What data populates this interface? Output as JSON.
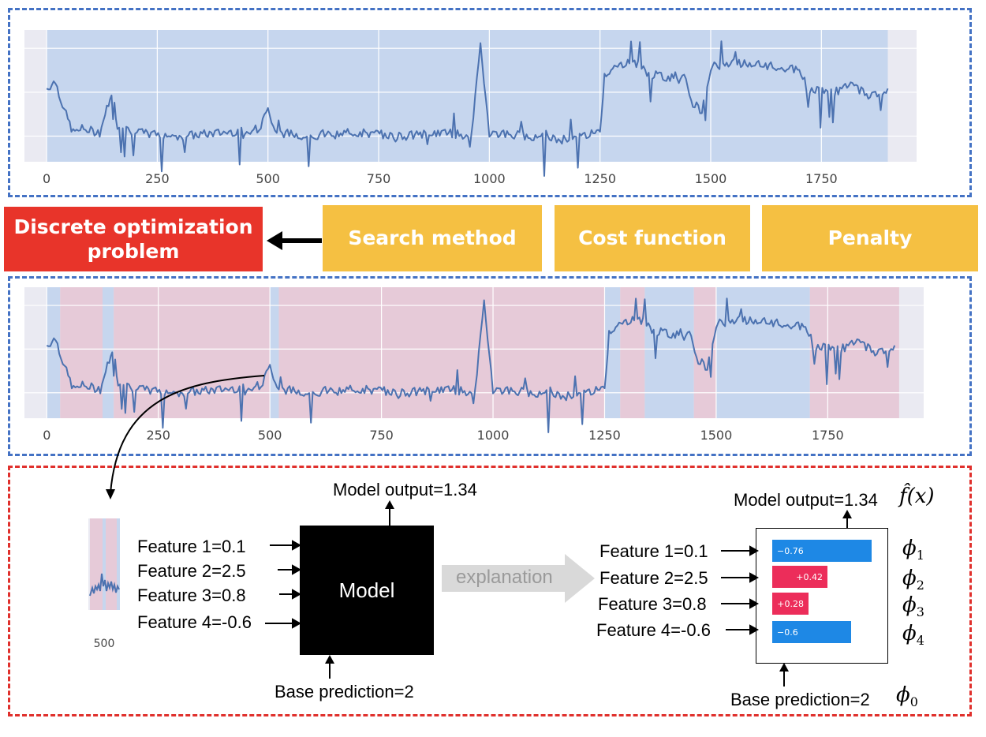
{
  "colors": {
    "line": "#4c72b0",
    "blue_region": "#c6d6ee",
    "red_region": "#e6cad8",
    "panel_bg": "#eaeaf2",
    "blue_dash": "#4472c4",
    "red_dash": "#e0302c",
    "red_box": "#e8342a",
    "gold_box": "#f5c042",
    "shap_neg": "#1e88e5",
    "shap_pos": "#ec2d5a",
    "arrow_gray": "#d9d9d9"
  },
  "chart_data": [
    {
      "type": "line",
      "title": "",
      "xlabel": "",
      "ylabel": "",
      "xlim": [
        -50,
        1965
      ],
      "xticks": [
        "0",
        "250",
        "500",
        "750",
        "1000",
        "1250",
        "1500",
        "1750"
      ],
      "grid": true,
      "segments": [
        {
          "x": [
            0,
            1900
          ],
          "region": "blue"
        }
      ],
      "series": [
        {
          "x": [
            0,
            20,
            40,
            60,
            80,
            120,
            140,
            150,
            160,
            200,
            300,
            400,
            480,
            500,
            520,
            600,
            700,
            800,
            900,
            960,
            980,
            1000,
            1100,
            1160,
            1200,
            1250,
            1260,
            1290,
            1320,
            1360,
            1400,
            1440,
            1460,
            1480,
            1500,
            1560,
            1640,
            1700,
            1720,
            1780,
            1820,
            1860,
            1900
          ],
          "y": [
            1.8,
            1.9,
            1.5,
            1.2,
            1.25,
            1.2,
            1.6,
            1.7,
            1.3,
            1.2,
            1.15,
            1.2,
            1.25,
            1.5,
            1.2,
            1.15,
            1.2,
            1.15,
            1.2,
            1.15,
            2.4,
            1.2,
            1.15,
            1.1,
            1.15,
            1.2,
            2.0,
            2.1,
            2.2,
            2.0,
            1.95,
            2.0,
            1.6,
            1.5,
            2.1,
            2.15,
            2.1,
            2.05,
            1.8,
            1.75,
            1.85,
            1.7,
            1.8
          ]
        }
      ]
    },
    {
      "type": "line",
      "title": "",
      "xlabel": "",
      "ylabel": "",
      "xlim": [
        -50,
        1965
      ],
      "xticks": [
        "0",
        "250",
        "500",
        "750",
        "1000",
        "1250",
        "1500",
        "1750"
      ],
      "grid": true,
      "segments": [
        {
          "x": [
            0,
            30
          ],
          "region": "blue"
        },
        {
          "x": [
            30,
            125
          ],
          "region": "red"
        },
        {
          "x": [
            125,
            150
          ],
          "region": "blue"
        },
        {
          "x": [
            150,
            500
          ],
          "region": "red"
        },
        {
          "x": [
            500,
            520
          ],
          "region": "blue"
        },
        {
          "x": [
            520,
            1250
          ],
          "region": "red"
        },
        {
          "x": [
            1250,
            1285
          ],
          "region": "blue"
        },
        {
          "x": [
            1285,
            1340
          ],
          "region": "red"
        },
        {
          "x": [
            1340,
            1450
          ],
          "region": "blue"
        },
        {
          "x": [
            1450,
            1500
          ],
          "region": "red"
        },
        {
          "x": [
            1500,
            1710
          ],
          "region": "blue"
        },
        {
          "x": [
            1710,
            1910
          ],
          "region": "red"
        }
      ],
      "series": [
        {
          "x": [
            0,
            20,
            40,
            60,
            80,
            120,
            140,
            150,
            160,
            200,
            300,
            400,
            480,
            500,
            520,
            600,
            700,
            800,
            900,
            960,
            980,
            1000,
            1100,
            1160,
            1200,
            1250,
            1260,
            1290,
            1320,
            1360,
            1400,
            1440,
            1460,
            1480,
            1500,
            1560,
            1640,
            1700,
            1720,
            1780,
            1820,
            1860,
            1900
          ],
          "y": [
            1.8,
            1.9,
            1.5,
            1.2,
            1.25,
            1.2,
            1.6,
            1.7,
            1.3,
            1.2,
            1.15,
            1.2,
            1.25,
            1.5,
            1.2,
            1.15,
            1.2,
            1.15,
            1.2,
            1.15,
            2.4,
            1.2,
            1.15,
            1.1,
            1.15,
            1.2,
            2.0,
            2.1,
            2.2,
            2.0,
            1.95,
            2.0,
            1.6,
            1.5,
            2.1,
            2.15,
            2.1,
            2.05,
            1.8,
            1.75,
            1.85,
            1.7,
            1.8
          ]
        }
      ]
    },
    {
      "type": "bar",
      "title": "",
      "orientation": "horizontal",
      "categories": [
        "Feature 1=0.1",
        "Feature 2=2.5",
        "Feature 3=0.8",
        "Feature 4=-0.6"
      ],
      "values": [
        -0.76,
        0.42,
        0.28,
        -0.6
      ],
      "labels": [
        "−0.76",
        "+0.42",
        "+0.28",
        "−0.6"
      ]
    }
  ],
  "flow": {
    "problem": [
      "Discrete optimization",
      "problem"
    ],
    "search": "Search method",
    "cost": "Cost function",
    "penalty": "Penalty"
  },
  "snippet": {
    "tick": "500"
  },
  "model": {
    "label": "Model",
    "output": "Model output=1.34",
    "base": "Base prediction=2",
    "features": [
      "Feature 1=0.1",
      "Feature 2=2.5",
      "Feature 3=0.8",
      "Feature 4=-0.6"
    ]
  },
  "explanation": {
    "arrow_label": "explanation",
    "output": "Model output=1.34",
    "fhat": "f̂(x)",
    "base": "Base prediction=2",
    "phi_symbol": "ϕ",
    "phi_subs": [
      "1",
      "2",
      "3",
      "4"
    ],
    "phi0_sub": "0",
    "features": [
      "Feature 1=0.1",
      "Feature 2=2.5",
      "Feature 3=0.8",
      "Feature 4=-0.6"
    ]
  }
}
